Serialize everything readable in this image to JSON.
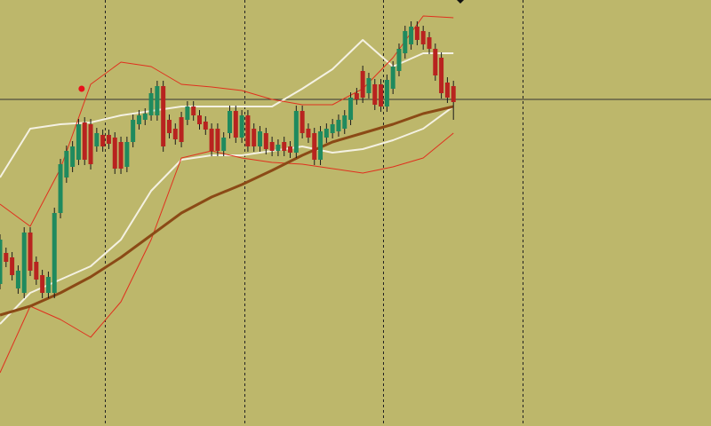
{
  "chart_data": {
    "type": "candlestick",
    "ylim": [
      0,
      480
    ],
    "xlim": [
      1,
      118.6
    ],
    "up_color": "#1f8a5e",
    "down_color": "#b8231f",
    "wick_color": "#1a1a1a",
    "open": [
      160,
      195,
      190,
      155,
      150,
      218,
      185,
      170,
      150,
      150,
      240,
      280,
      292,
      300,
      342,
      340,
      315,
      328,
      328,
      325,
      320,
      292,
      320,
      340,
      345,
      350,
      350,
      383,
      345,
      335,
      348,
      345,
      360,
      350,
      343,
      335,
      335,
      310,
      330,
      355,
      325,
      350,
      335,
      315,
      330,
      320,
      310,
      320,
      315,
      308,
      355,
      335,
      330,
      300,
      325,
      330,
      332,
      335,
      345,
      375,
      400,
      375,
      385,
      385,
      360,
      380,
      400,
      420,
      430,
      450,
      445,
      438,
      425,
      415,
      387,
      383
    ],
    "close": [
      210,
      185,
      170,
      175,
      218,
      175,
      165,
      150,
      168,
      240,
      295,
      310,
      315,
      340,
      300,
      295,
      330,
      315,
      318,
      290,
      290,
      320,
      345,
      350,
      352,
      375,
      383,
      315,
      330,
      323,
      320,
      360,
      350,
      340,
      334,
      310,
      310,
      325,
      355,
      325,
      350,
      315,
      315,
      332,
      312,
      310,
      317,
      310,
      308,
      355,
      330,
      325,
      300,
      332,
      335,
      340,
      345,
      350,
      370,
      368,
      370,
      392,
      362,
      360,
      390,
      405,
      425,
      445,
      450,
      435,
      430,
      425,
      395,
      375,
      370,
      365
    ],
    "high": [
      216,
      201,
      196,
      181,
      224,
      224,
      191,
      176,
      174,
      246,
      301,
      316,
      321,
      346,
      348,
      346,
      336,
      334,
      334,
      331,
      326,
      326,
      351,
      356,
      358,
      381,
      389,
      389,
      351,
      341,
      354,
      366,
      366,
      356,
      349,
      341,
      341,
      331,
      361,
      361,
      356,
      356,
      341,
      338,
      336,
      326,
      323,
      326,
      321,
      361,
      361,
      341,
      336,
      338,
      341,
      346,
      351,
      356,
      376,
      381,
      406,
      398,
      391,
      391,
      396,
      411,
      431,
      451,
      456,
      456,
      451,
      444,
      431,
      421,
      393,
      389
    ],
    "low": [
      154,
      179,
      164,
      149,
      144,
      169,
      159,
      144,
      144,
      144,
      234,
      274,
      286,
      294,
      294,
      289,
      309,
      309,
      312,
      284,
      284,
      286,
      314,
      334,
      339,
      344,
      344,
      309,
      324,
      317,
      314,
      339,
      344,
      334,
      328,
      304,
      304,
      304,
      324,
      319,
      319,
      309,
      309,
      309,
      306,
      304,
      304,
      304,
      302,
      302,
      324,
      319,
      294,
      294,
      319,
      324,
      326,
      329,
      339,
      362,
      364,
      369,
      356,
      354,
      354,
      374,
      394,
      414,
      424,
      429,
      424,
      419,
      389,
      369,
      364,
      345
    ],
    "line_x": [
      1,
      6,
      11,
      16,
      21,
      26,
      31,
      36,
      41,
      46,
      51,
      56,
      61,
      66,
      71,
      76
    ],
    "lines": [
      {
        "color": "#f4f1e2",
        "width": 2,
        "values": [
          280,
          335,
          340,
          342,
          350,
          355,
          360,
          360,
          360,
          360,
          380,
          402,
          435,
          405,
          420,
          420
        ]
      },
      {
        "color": "#f4f1e2",
        "width": 2,
        "values": [
          115,
          150,
          165,
          180,
          210,
          265,
          300,
          305,
          305,
          310,
          315,
          308,
          312,
          322,
          335,
          360
        ]
      },
      {
        "color": "#e0301e",
        "width": 1,
        "values": [
          250,
          225,
          290,
          385,
          410,
          405,
          385,
          382,
          378,
          368,
          362,
          362,
          380,
          415,
          462,
          460
        ]
      },
      {
        "color": "#e0301e",
        "width": 1,
        "values": [
          60,
          135,
          120,
          100,
          140,
          210,
          302,
          310,
          302,
          297,
          295,
          290,
          285,
          292,
          302,
          330
        ]
      },
      {
        "color": "#8b4a16",
        "width": 3,
        "values": [
          125,
          135,
          150,
          168,
          190,
          215,
          240,
          258,
          272,
          288,
          305,
          320,
          330,
          340,
          352,
          360
        ]
      }
    ],
    "price_line": 368,
    "price_line_color": "#333333",
    "signal": {
      "x": 14.5,
      "y": 380,
      "color": "#e8101a"
    }
  }
}
